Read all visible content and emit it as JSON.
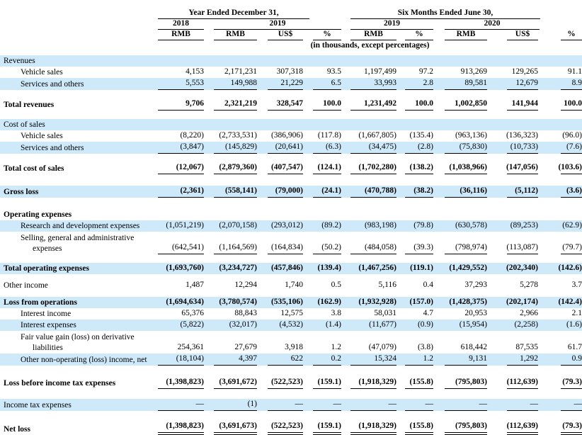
{
  "header": {
    "groups": [
      "Year Ended December 31,",
      "Six Months Ended June 30,"
    ],
    "years": [
      "2018",
      "2019",
      "2019",
      "2020"
    ],
    "cols": [
      "RMB",
      "RMB",
      "US$",
      "%",
      "RMB",
      "%",
      "RMB",
      "US$",
      "%"
    ],
    "note": "(in thousands, except percentages)"
  },
  "colors": {
    "row_highlight": "#cee9fa",
    "text": "#000000",
    "rule": "#000000"
  },
  "rows": [
    {
      "label": "Revenues",
      "blue": true,
      "section": true
    },
    {
      "label": "Vehicle sales",
      "indent": 1,
      "values": [
        "4,153",
        "2,171,231",
        "307,318",
        "93.5",
        "1,197,499",
        "97.2",
        "913,269",
        "129,265",
        "91.1"
      ]
    },
    {
      "label": "Services and others",
      "indent": 1,
      "blue": true,
      "underline": "single",
      "values": [
        "5,553",
        "149,988",
        "21,229",
        "6.5",
        "33,993",
        "2.8",
        "89,581",
        "12,679",
        "8.9"
      ]
    },
    {
      "spacer": 12
    },
    {
      "label": "Total revenues",
      "bold": true,
      "underline": "single",
      "values": [
        "9,706",
        "2,321,219",
        "328,547",
        "100.0",
        "1,231,492",
        "100.0",
        "1,002,850",
        "141,944",
        "100.0"
      ]
    },
    {
      "spacer": 12
    },
    {
      "label": "Cost of sales",
      "blue": true,
      "section": true
    },
    {
      "label": "Vehicle sales",
      "indent": 1,
      "values": [
        "(8,220)",
        "(2,733,531)",
        "(386,906)",
        "(117.8)",
        "(1,667,805)",
        "(135.4)",
        "(963,136)",
        "(136,323)",
        "(96.0)"
      ]
    },
    {
      "label": "Services and others",
      "indent": 1,
      "blue": true,
      "underline": "single",
      "values": [
        "(3,847)",
        "(145,829)",
        "(20,641)",
        "(6.3)",
        "(34,475)",
        "(2.8)",
        "(75,830)",
        "(10,733)",
        "(7.6)"
      ]
    },
    {
      "spacer": 12
    },
    {
      "label": "Total cost of sales",
      "bold": true,
      "underline": "single",
      "values": [
        "(12,067)",
        "(2,879,360)",
        "(407,547)",
        "(124.1)",
        "(1,702,280)",
        "(138.2)",
        "(1,038,966)",
        "(147,056)",
        "(103.6)"
      ]
    },
    {
      "spacer": 16
    },
    {
      "label": "Gross loss",
      "bold": true,
      "blue": true,
      "underline": "single",
      "values": [
        "(2,361)",
        "(558,141)",
        "(79,000)",
        "(24.1)",
        "(470,788)",
        "(38.2)",
        "(36,116)",
        "(5,112)",
        "(3.6)"
      ]
    },
    {
      "spacer": 16
    },
    {
      "label": "Operating expenses",
      "bold": true,
      "section": true
    },
    {
      "label": "Research and development expenses",
      "indent": 1,
      "blue": true,
      "values": [
        "(1,051,219)",
        "(2,070,158)",
        "(293,012)",
        "(89.2)",
        "(983,198)",
        "(79.8)",
        "(630,578)",
        "(89,253)",
        "(62.9)"
      ]
    },
    {
      "label": "Selling, general and administrative",
      "label2": "expenses",
      "indent": 1,
      "underline": "single",
      "values": [
        "(642,541)",
        "(1,164,569)",
        "(164,834)",
        "(50.2)",
        "(484,058)",
        "(39.3)",
        "(798,974)",
        "(113,087)",
        "(79.7)"
      ]
    },
    {
      "spacer": 12
    },
    {
      "label": "Total operating expenses",
      "bold": true,
      "blue": true,
      "values": [
        "(1,693,760)",
        "(3,234,727)",
        "(457,846)",
        "(139.4)",
        "(1,467,256)",
        "(119.1)",
        "(1,429,552)",
        "(202,340)",
        "(142.6)"
      ]
    },
    {
      "spacer": 8
    },
    {
      "label": "Other income",
      "values": [
        "1,487",
        "12,294",
        "1,740",
        "0.5",
        "5,116",
        "0.4",
        "37,293",
        "5,278",
        "3.7"
      ]
    },
    {
      "spacer": 8
    },
    {
      "label": "Loss from operations",
      "bold": true,
      "blue": true,
      "values": [
        "(1,694,634)",
        "(3,780,574)",
        "(535,106)",
        "(162.9)",
        "(1,932,928)",
        "(157.0)",
        "(1,428,375)",
        "(202,174)",
        "(142.4)"
      ]
    },
    {
      "label": "Interest income",
      "indent": 1,
      "values": [
        "65,376",
        "88,843",
        "12,575",
        "3.8",
        "58,031",
        "4.7",
        "20,953",
        "2,966",
        "2.1"
      ]
    },
    {
      "label": "Interest expenses",
      "indent": 1,
      "blue": true,
      "values": [
        "(5,822)",
        "(32,017)",
        "(4,532)",
        "(1.4)",
        "(11,677)",
        "(0.9)",
        "(15,954)",
        "(2,258)",
        "(1.6)"
      ]
    },
    {
      "label": "Fair value gain (loss) on derivative",
      "label2": "liabilities",
      "indent": 1,
      "values": [
        "254,361",
        "27,679",
        "3,918",
        "1.2",
        "(47,079)",
        "(3.8)",
        "618,442",
        "87,535",
        "61.7"
      ]
    },
    {
      "label": "Other non-operating (loss) income, net",
      "indent": 1,
      "blue": true,
      "underline": "single",
      "values": [
        "(18,104)",
        "4,397",
        "622",
        "0.2",
        "15,324",
        "1.2",
        "9,131",
        "1,292",
        "0.9"
      ]
    },
    {
      "spacer": 16
    },
    {
      "label": "Loss before income tax expenses",
      "bold": true,
      "underline": "single",
      "values": [
        "(1,398,823)",
        "(3,691,672)",
        "(522,523)",
        "(159.1)",
        "(1,918,329)",
        "(155.8)",
        "(795,803)",
        "(112,639)",
        "(79.3)"
      ]
    },
    {
      "spacer": 14
    },
    {
      "label": "Income tax expenses",
      "blue": true,
      "underline": "single",
      "values": [
        "—",
        "(1)",
        "—",
        "—",
        "—",
        "—",
        "—",
        "—",
        "—"
      ]
    },
    {
      "spacer": 14
    },
    {
      "label": "Net loss",
      "bold": true,
      "underline": "double",
      "h": 18,
      "values": [
        "(1,398,823)",
        "(3,691,673)",
        "(522,523)",
        "(159.1)",
        "(1,918,329)",
        "(155.8)",
        "(795,803)",
        "(112,639)",
        "(79.3)"
      ]
    }
  ]
}
